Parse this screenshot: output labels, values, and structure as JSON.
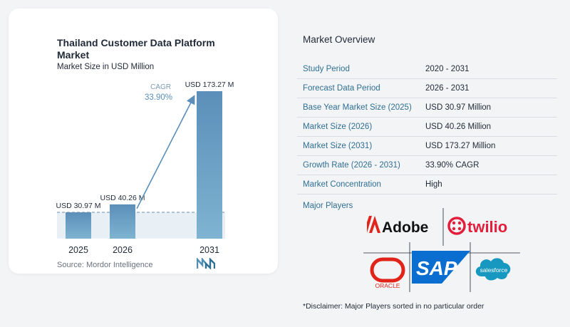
{
  "chart_data": {
    "type": "bar",
    "title": "Thailand Customer Data Platform Market",
    "subtitle": "Market Size in USD Million",
    "categories": [
      "2025",
      "2026",
      "2031"
    ],
    "values": [
      30.97,
      40.26,
      173.27
    ],
    "data_labels": [
      "USD 30.97 M",
      "USD 40.26 M",
      "USD 173.27 M"
    ],
    "cagr_label": "CAGR",
    "cagr_value": "33.90%",
    "colors": {
      "bar_top": "#5b8fb9",
      "bar_bottom": "#7fb3d1",
      "arrow": "#5b8fb9",
      "baseline_band": "#e8f0f6"
    },
    "grid": false
  },
  "source": "Source:  Mordor Intelligence",
  "overview": {
    "title": "Market Overview",
    "rows": [
      {
        "key": "Study Period",
        "value": "2020 - 2031"
      },
      {
        "key": "Forecast Data Period",
        "value": "2026 - 2031"
      },
      {
        "key": "Base Year Market Size (2025)",
        "value": "USD 30.97 Million"
      },
      {
        "key": "Market Size (2026)",
        "value": "USD 40.26 Million"
      },
      {
        "key": "Market Size (2031)",
        "value": "USD 173.27 Million"
      },
      {
        "key": "Growth Rate (2026 - 2031)",
        "value": "33.90% CAGR"
      },
      {
        "key": "Market Concentration",
        "value": "High"
      }
    ],
    "players_label": "Major Players",
    "players": [
      {
        "name": "Adobe",
        "icon": "adobe-logo",
        "color": "#e1251b"
      },
      {
        "name": "twilio",
        "icon": "twilio-logo",
        "color": "#e31e3d"
      },
      {
        "name": "ORACLE",
        "icon": "oracle-logo",
        "color": "#e2231a"
      },
      {
        "name": "SAP",
        "icon": "sap-logo",
        "color": "#0a6ed1"
      },
      {
        "name": "salesforce",
        "icon": "salesforce-logo",
        "color": "#1798c1"
      }
    ],
    "disclaimer": "*Disclaimer: Major Players sorted in no particular order"
  }
}
